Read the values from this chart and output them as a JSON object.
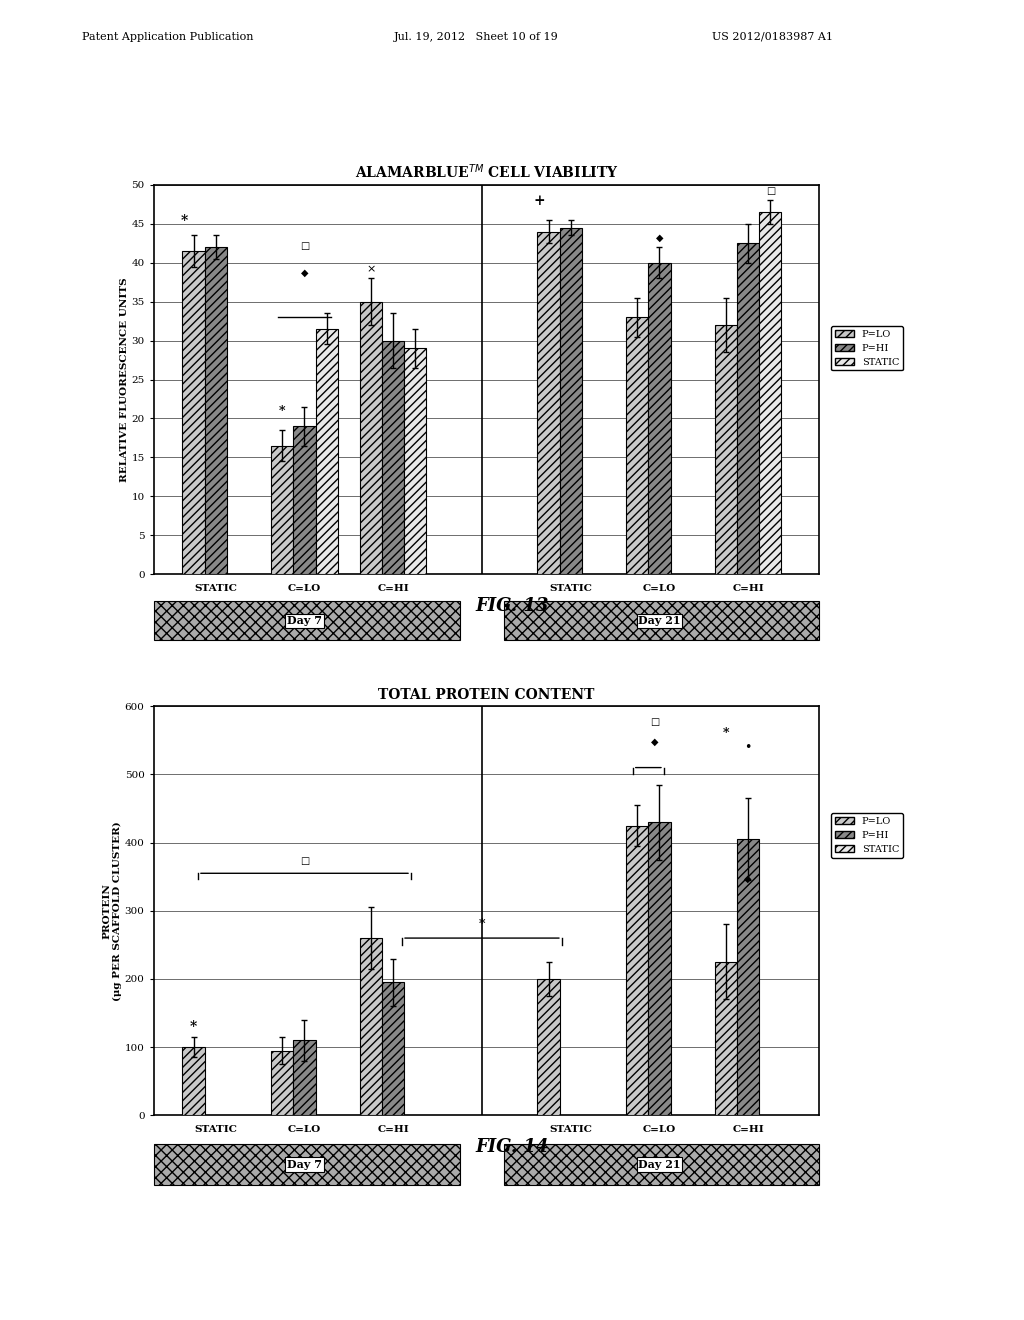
{
  "fig13": {
    "title": "ALAMARBLUE$^{TM}$ CELL VIABILITY",
    "ylabel": "RELATIVE FLUORESCENCE UNITS",
    "ylim": [
      0,
      50
    ],
    "yticks": [
      0,
      5,
      10,
      15,
      20,
      25,
      30,
      35,
      40,
      45,
      50
    ],
    "groups": [
      "STATIC",
      "C=LO",
      "C=HI",
      "STATIC",
      "C=LO",
      "C=HI"
    ],
    "bar_data": {
      "P_LO": [
        41.5,
        16.5,
        35.0,
        44.0,
        33.0,
        32.0
      ],
      "P_HI": [
        42.0,
        19.0,
        30.0,
        44.5,
        40.0,
        42.5
      ],
      "STATIC": [
        null,
        31.5,
        29.0,
        null,
        null,
        46.5
      ]
    },
    "errors": {
      "P_LO": [
        2.0,
        2.0,
        3.0,
        1.5,
        2.5,
        3.5
      ],
      "P_HI": [
        1.5,
        2.5,
        3.5,
        1.0,
        2.0,
        2.5
      ],
      "STATIC": [
        null,
        2.0,
        2.5,
        null,
        null,
        1.5
      ]
    },
    "legend": [
      "P=LO",
      "P=HI",
      "STATIC"
    ]
  },
  "fig14": {
    "title": "TOTAL PROTEIN CONTENT",
    "ylabel": "PROTEIN\n(μg PER SCAFFOLD CLUSTER)",
    "ylim": [
      0,
      600
    ],
    "yticks": [
      0,
      100,
      200,
      300,
      400,
      500,
      600
    ],
    "groups": [
      "STATIC",
      "C=LO",
      "C=HI",
      "STATIC",
      "C=LO",
      "C=HI"
    ],
    "bar_data": {
      "P_LO": [
        100,
        95,
        260,
        200,
        425,
        225
      ],
      "P_HI": [
        null,
        110,
        195,
        null,
        430,
        405
      ],
      "STATIC": [
        null,
        null,
        null,
        null,
        null,
        null
      ]
    },
    "errors": {
      "P_LO": [
        15,
        20,
        45,
        25,
        30,
        55
      ],
      "P_HI": [
        null,
        30,
        35,
        null,
        55,
        60
      ],
      "STATIC": [
        null,
        null,
        null,
        null,
        null,
        null
      ]
    },
    "legend": [
      "P=LO",
      "P=HI",
      "STATIC"
    ]
  },
  "color_PLO": "#c8c8c8",
  "color_PHI": "#888888",
  "color_STATIC": "#e8e8e8",
  "bar_width": 0.25,
  "bg_color": "#ffffff"
}
